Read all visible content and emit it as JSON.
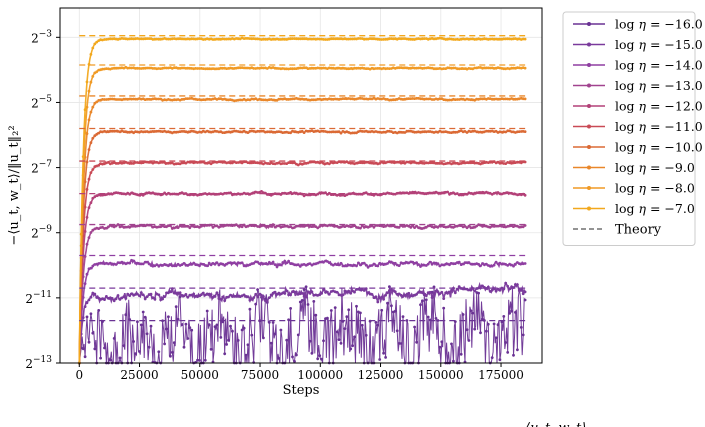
{
  "chart_data": {
    "type": "line",
    "xlabel": "Steps",
    "ylabel": "−⟨u_t, w_t⟩/‖u_t‖₂²",
    "xlim": [
      -8000,
      192000
    ],
    "ylim": [
      -13,
      -2.1
    ],
    "y_scale": "log2",
    "x_ticks": [
      0,
      25000,
      50000,
      75000,
      100000,
      125000,
      150000,
      175000
    ],
    "x_tick_labels": [
      "0",
      "25000",
      "50000",
      "75000",
      "100000",
      "125000",
      "150000",
      "175000"
    ],
    "y_ticks": [
      -13,
      -11,
      -9,
      -7,
      -5,
      -3
    ],
    "y_tick_labels": [
      {
        "base": "2",
        "exp": "−13"
      },
      {
        "base": "2",
        "exp": "−11"
      },
      {
        "base": "2",
        "exp": "−9"
      },
      {
        "base": "2",
        "exp": "−7"
      },
      {
        "base": "2",
        "exp": "−5"
      },
      {
        "base": "2",
        "exp": "−3"
      }
    ],
    "grid": true,
    "legend_position": "outside-right",
    "x_range": [
      0,
      185000
    ],
    "series": [
      {
        "name": "log η = −16.0",
        "color": "#6a3294",
        "theory_log2": -11.7,
        "plateau_log2": -12.6,
        "noise": 1.0
      },
      {
        "name": "log η = −15.0",
        "color": "#7a3a9c",
        "theory_log2": -10.7,
        "plateau_log2": -11.0,
        "noise": 0.18
      },
      {
        "name": "log η = −14.0",
        "color": "#8f3fa2",
        "theory_log2": -9.7,
        "plateau_log2": -9.95,
        "noise": 0.09
      },
      {
        "name": "log η = −13.0",
        "color": "#a1438f",
        "theory_log2": -8.75,
        "plateau_log2": -8.8,
        "noise": 0.06
      },
      {
        "name": "log η = −12.0",
        "color": "#b34178",
        "theory_log2": -7.8,
        "plateau_log2": -7.8,
        "noise": 0.05
      },
      {
        "name": "log η = −11.0",
        "color": "#c94a56",
        "theory_log2": -6.8,
        "plateau_log2": -6.85,
        "noise": 0.04
      },
      {
        "name": "log η = −10.0",
        "color": "#db6a35",
        "theory_log2": -5.8,
        "plateau_log2": -5.9,
        "noise": 0.035
      },
      {
        "name": "log η = −9.0",
        "color": "#e9872a",
        "theory_log2": -4.8,
        "plateau_log2": -4.9,
        "noise": 0.03
      },
      {
        "name": "log η = −8.0",
        "color": "#f09a25",
        "theory_log2": -3.85,
        "plateau_log2": -3.95,
        "noise": 0.025
      },
      {
        "name": "log η = −7.0",
        "color": "#f2a81d",
        "theory_log2": -2.95,
        "plateau_log2": -3.05,
        "noise": 0.02
      }
    ],
    "theory_label": "Theory",
    "legend_labels": [
      {
        "prefix": "log",
        "eta": "η",
        "value": " = −16.0"
      },
      {
        "prefix": "log",
        "eta": "η",
        "value": " = −15.0"
      },
      {
        "prefix": "log",
        "eta": "η",
        "value": " = −14.0"
      },
      {
        "prefix": "log",
        "eta": "η",
        "value": " = −13.0"
      },
      {
        "prefix": "log",
        "eta": "η",
        "value": " = −12.0"
      },
      {
        "prefix": "log",
        "eta": "η",
        "value": " = −11.0"
      },
      {
        "prefix": "log",
        "eta": "η",
        "value": " = −10.0"
      },
      {
        "prefix": "log",
        "eta": "η",
        "value": " = −9.0"
      },
      {
        "prefix": "log",
        "eta": "η",
        "value": " = −8.0"
      },
      {
        "prefix": "log",
        "eta": "η",
        "value": " = −7.0"
      }
    ],
    "caption_fragment": "⟨u_t, w_t⟩"
  }
}
